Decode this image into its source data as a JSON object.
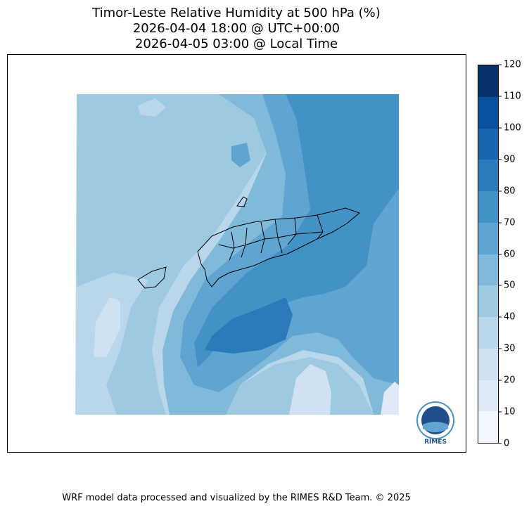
{
  "title": {
    "line1": "Timor-Leste Relative Humidity at 500 hPa (%)",
    "line2": "2026-04-04 18:00 @ UTC+00:00",
    "line3": "2026-04-05 03:00 @ Local Time"
  },
  "colorbar": {
    "levels": [
      "0",
      "10",
      "20",
      "30",
      "40",
      "50",
      "60",
      "70",
      "80",
      "90",
      "100",
      "110",
      "120"
    ],
    "colors": [
      "#f1f7fd",
      "#deebf7",
      "#d0e1f2",
      "#bad6eb",
      "#9ecae1",
      "#81b9da",
      "#60a5d2",
      "#4292c6",
      "#2b7bba",
      "#1966ad",
      "#08519c",
      "#08306b"
    ]
  },
  "logo": {
    "text": "RIMES",
    "ring_text": "Regional Integrated Multi-Hazard Early Warning System"
  },
  "footer": {
    "text": "WRF model data processed and visualized by the RIMES R&D Team. © 2025"
  }
}
